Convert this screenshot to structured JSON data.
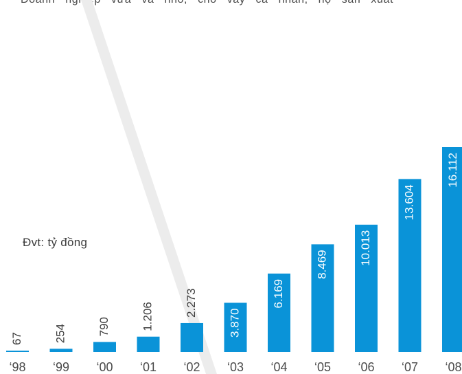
{
  "header": {
    "text": "Doanh nghiệp vừa và nhỏ, cho vay cá nhân, hộ sản xuất"
  },
  "unit_label": "Đvt: tỷ đồng",
  "colors": {
    "bar": "#0a93d8",
    "label_dark": "#3c3c3c",
    "label_light": "#ffffff",
    "axis_text": "#4a4a4a",
    "decor": "#ececec"
  },
  "chart_data": {
    "type": "bar",
    "categories": [
      "‘98",
      "‘99",
      "‘00",
      "‘01",
      "‘02",
      "‘03",
      "‘04",
      "‘05",
      "‘06",
      "‘07",
      "‘08"
    ],
    "values": [
      67,
      254,
      790,
      1206,
      2273,
      3870,
      6169,
      8469,
      10013,
      13604,
      16112
    ],
    "data_labels": [
      "67",
      "254",
      "790",
      "1.206",
      "2.273",
      "3.870",
      "6.169",
      "8.469",
      "10.013",
      "13.604",
      "16.112"
    ],
    "ylim": [
      0,
      17000
    ],
    "title": "",
    "xlabel": "",
    "ylabel": "Đvt: tỷ đồng",
    "grid": false,
    "legend": "none"
  }
}
